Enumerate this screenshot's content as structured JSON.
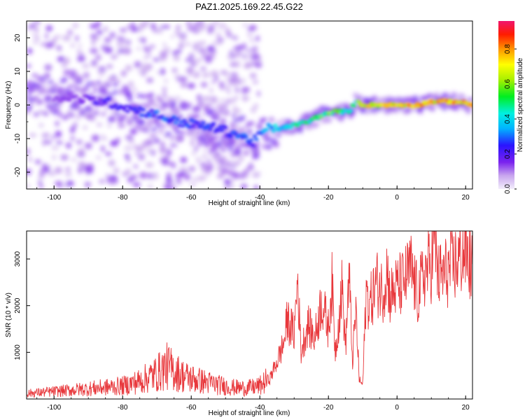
{
  "title": "PAZ1.2025.169.22.45.G22",
  "chart_data": [
    {
      "type": "heatmap",
      "xlabel": "Height of straight line (km)",
      "ylabel": "Frequency (Hz)",
      "xlim": [
        -108,
        22
      ],
      "ylim": [
        -25,
        25
      ],
      "xticks": [
        -100,
        -80,
        -60,
        -40,
        -20,
        0,
        20
      ],
      "yticks": [
        -20,
        -10,
        0,
        10,
        20
      ],
      "colorbar": {
        "label": "Normalized spectral amplitude",
        "range": [
          0,
          0.96
        ],
        "ticks": [
          0.0,
          0.2,
          0.4,
          0.6,
          0.8
        ]
      },
      "ridge": {
        "x": [
          -108,
          -95,
          -85,
          -78,
          -70,
          -64,
          -58,
          -52,
          -46,
          -42,
          -38,
          -34,
          -30,
          -26,
          -22,
          -18,
          -14,
          -12,
          -10,
          -6,
          -2,
          2,
          6,
          10,
          14,
          18,
          22
        ],
        "frequency": [
          3,
          2,
          1,
          -1,
          -3,
          -5,
          -6,
          -7,
          -9,
          -11,
          -7,
          -7,
          -6,
          -5,
          -3,
          -2,
          -2,
          1,
          0,
          0,
          0,
          0,
          0,
          1,
          1,
          1,
          0
        ],
        "amplitude": [
          0.1,
          0.15,
          0.25,
          0.25,
          0.3,
          0.3,
          0.3,
          0.25,
          0.3,
          0.3,
          0.35,
          0.45,
          0.5,
          0.55,
          0.6,
          0.65,
          0.5,
          0.5,
          0.8,
          0.7,
          0.8,
          0.75,
          0.85,
          0.8,
          0.85,
          0.85,
          0.9
        ]
      }
    },
    {
      "type": "line",
      "xlabel": "Height of straight line (km)",
      "ylabel": "SNR (10 * v/v)",
      "xlim": [
        -108,
        22
      ],
      "ylim": [
        0,
        3600
      ],
      "xticks": [
        -100,
        -80,
        -60,
        -40,
        -20,
        0,
        20
      ],
      "yticks": [
        1000,
        2000,
        3000
      ],
      "series": [
        {
          "color": "#e8383c",
          "x": [
            -108,
            -100,
            -90,
            -80,
            -75,
            -70,
            -67,
            -65,
            -62,
            -58,
            -55,
            -52,
            -48,
            -44,
            -40,
            -37,
            -35,
            -33,
            -32,
            -30,
            -29,
            -28,
            -26,
            -24,
            -22,
            -20,
            -19,
            -18,
            -16,
            -15,
            -14,
            -13,
            -12,
            -11,
            -10,
            -9,
            -8,
            -6,
            -4,
            -3,
            -2,
            0,
            2,
            4,
            6,
            8,
            10,
            11,
            12,
            14,
            16,
            18,
            20,
            22
          ],
          "y": [
            120,
            160,
            220,
            280,
            380,
            550,
            700,
            600,
            480,
            400,
            350,
            300,
            250,
            230,
            280,
            450,
            800,
            1200,
            1700,
            1400,
            2600,
            1000,
            1600,
            1300,
            2100,
            1500,
            2500,
            1000,
            2400,
            1100,
            2700,
            800,
            1900,
            400,
            300,
            2300,
            2000,
            2500,
            2300,
            2800,
            2200,
            2400,
            2500,
            2800,
            2200,
            2700,
            2900,
            3500,
            2600,
            2700,
            2800,
            3000,
            3200,
            2700
          ]
        }
      ]
    }
  ]
}
